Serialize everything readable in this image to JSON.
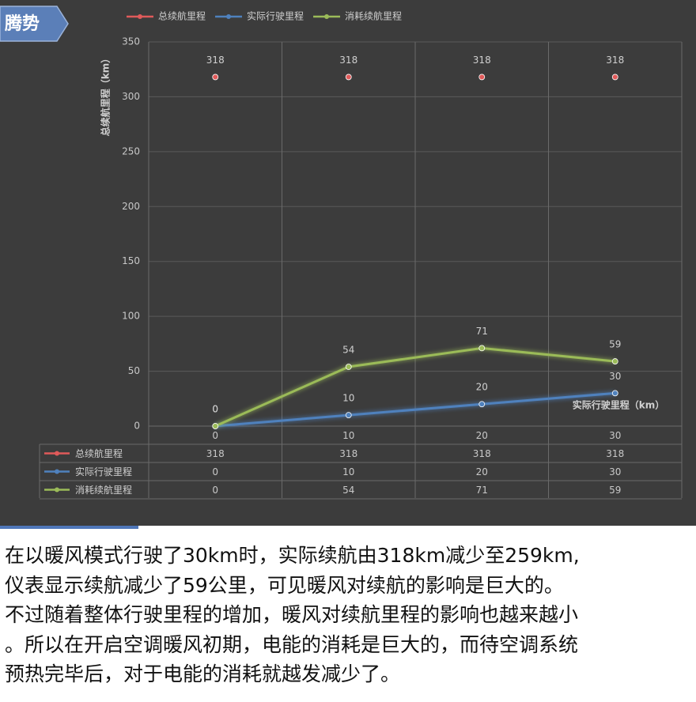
{
  "logo": "腾势",
  "chart_data": {
    "type": "line",
    "y_label": "总续航里程（km）",
    "x_label": "实际行驶里程（km）",
    "categories": [
      "0",
      "10",
      "20",
      "30"
    ],
    "series": [
      {
        "name": "总续航里程",
        "color": "#e05a5a",
        "values": [
          318,
          318,
          318,
          318
        ]
      },
      {
        "name": "实际行驶里程",
        "color": "#4f81bd",
        "values": [
          0,
          10,
          20,
          30
        ]
      },
      {
        "name": "消耗续航里程",
        "color": "#9bbb59",
        "values": [
          0,
          54,
          71,
          59
        ]
      }
    ],
    "ylim": [
      0,
      350
    ],
    "yticks": [
      0,
      50,
      100,
      150,
      200,
      250,
      300,
      350
    ],
    "grid": true
  },
  "paragraph": [
    "在以暖风模式行驶了30km时，实际续航由318km减少至259km,",
    "仪表显示续航减少了59公里，可见暖风对续航的影响是巨大的。",
    "不过随着整体行驶里程的增加，暖风对续航里程的影响也越来越小",
    "。所以在开启空调暖风初期，电能的消耗是巨大的，而待空调系统",
    "预热完毕后，对于电能的消耗就越发减少了。"
  ]
}
